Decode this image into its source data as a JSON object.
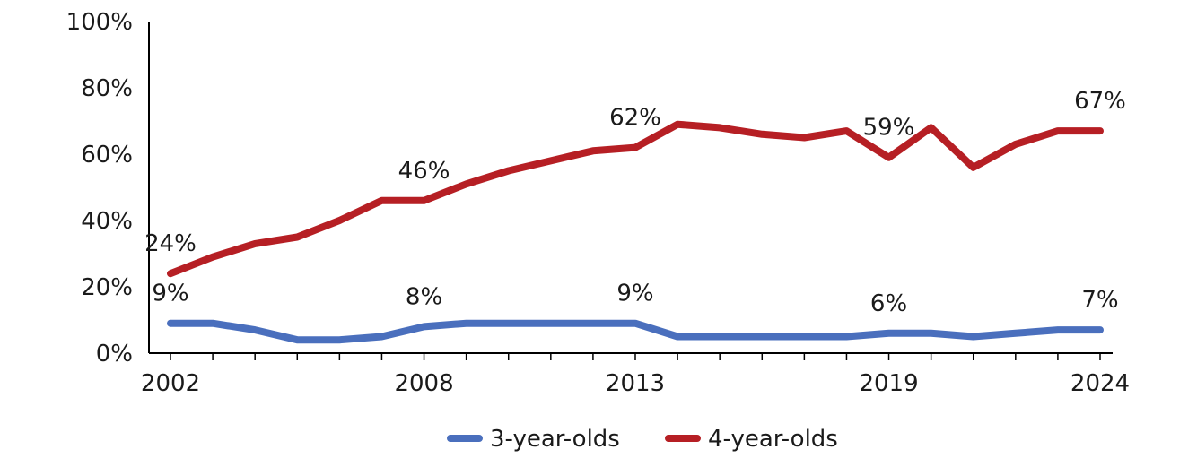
{
  "chart_data": {
    "type": "line",
    "title": "",
    "xlabel": "",
    "ylabel": "",
    "ylim": [
      0,
      100
    ],
    "yticks": [
      "0%",
      "20%",
      "40%",
      "60%",
      "80%",
      "100%"
    ],
    "xtick_labels": [
      "2002",
      "2008",
      "2013",
      "2019",
      "2024"
    ],
    "x": [
      2002,
      2003,
      2004,
      2005,
      2006,
      2007,
      2008,
      2009,
      2010,
      2011,
      2012,
      2013,
      2014,
      2015,
      2016,
      2017,
      2018,
      2019,
      2020,
      2021,
      2022,
      2023,
      2024
    ],
    "series": [
      {
        "name": "3-year-olds",
        "color": "#4a6fbd",
        "values": [
          9,
          9,
          7,
          4,
          4,
          5,
          8,
          9,
          9,
          9,
          9,
          9,
          5,
          5,
          5,
          5,
          5,
          6,
          6,
          5,
          6,
          7,
          7
        ],
        "data_labels": [
          {
            "x": 2002,
            "text": "9%"
          },
          {
            "x": 2008,
            "text": "8%"
          },
          {
            "x": 2013,
            "text": "9%"
          },
          {
            "x": 2019,
            "text": "6%"
          },
          {
            "x": 2024,
            "text": "7%"
          }
        ]
      },
      {
        "name": "4-year-olds",
        "color": "#b61f24",
        "values": [
          24,
          29,
          33,
          35,
          40,
          46,
          46,
          51,
          55,
          58,
          61,
          62,
          69,
          68,
          66,
          65,
          67,
          59,
          68,
          56,
          63,
          67,
          67
        ],
        "data_labels": [
          {
            "x": 2002,
            "text": "24%"
          },
          {
            "x": 2008,
            "text": "46%"
          },
          {
            "x": 2013,
            "text": "62%"
          },
          {
            "x": 2019,
            "text": "59%"
          },
          {
            "x": 2024,
            "text": "67%"
          }
        ]
      }
    ],
    "grid": false,
    "legend": "bottom-center"
  }
}
